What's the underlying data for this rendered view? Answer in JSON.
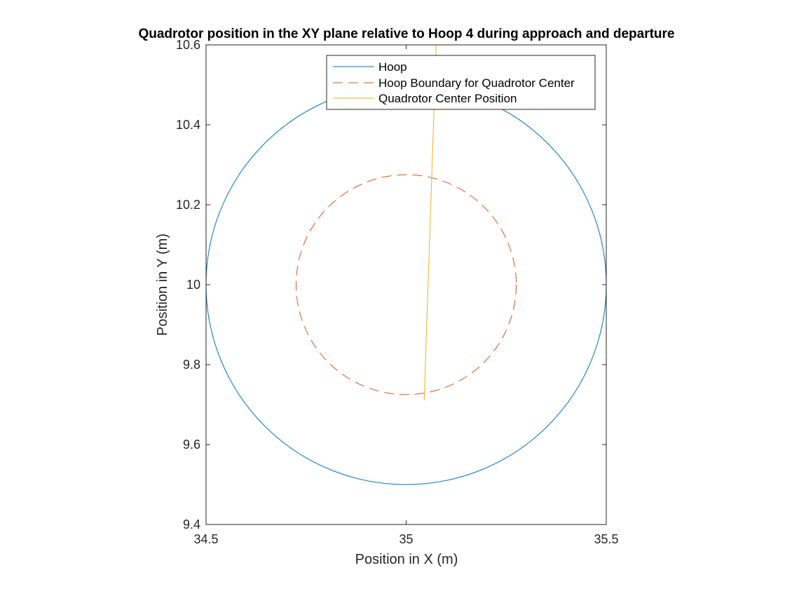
{
  "chart_data": {
    "type": "line",
    "title": "Quadrotor position in the XY plane relative to Hoop 4 during approach and departure",
    "xlabel": "Position in X (m)",
    "ylabel": "Position in Y (m)",
    "xlim": [
      34.5,
      35.5
    ],
    "ylim": [
      9.4,
      10.6
    ],
    "x_ticks": [
      34.5,
      35,
      35.5
    ],
    "x_tick_labels": [
      "34.5",
      "35",
      "35.5"
    ],
    "y_ticks": [
      9.4,
      9.6,
      9.8,
      10,
      10.2,
      10.4,
      10.6
    ],
    "y_tick_labels": [
      "9.4",
      "9.6",
      "9.8",
      "10",
      "10.2",
      "10.4",
      "10.6"
    ],
    "grid": false,
    "box": true,
    "legend_position": "top-right",
    "series": [
      {
        "name": "Hoop",
        "kind": "circle",
        "center": [
          35,
          10
        ],
        "radius": 0.5,
        "color": "#0072BD",
        "style": "solid"
      },
      {
        "name": "Hoop Boundary for Quadrotor Center",
        "kind": "circle",
        "center": [
          35,
          10
        ],
        "radius": 0.275,
        "color": "#D95319",
        "style": "dashed"
      },
      {
        "name": "Quadrotor Center Position",
        "kind": "path",
        "x": [
          35.045,
          35.075
        ],
        "y": [
          9.71,
          10.6
        ],
        "color": "#EDB120",
        "style": "solid"
      }
    ]
  }
}
